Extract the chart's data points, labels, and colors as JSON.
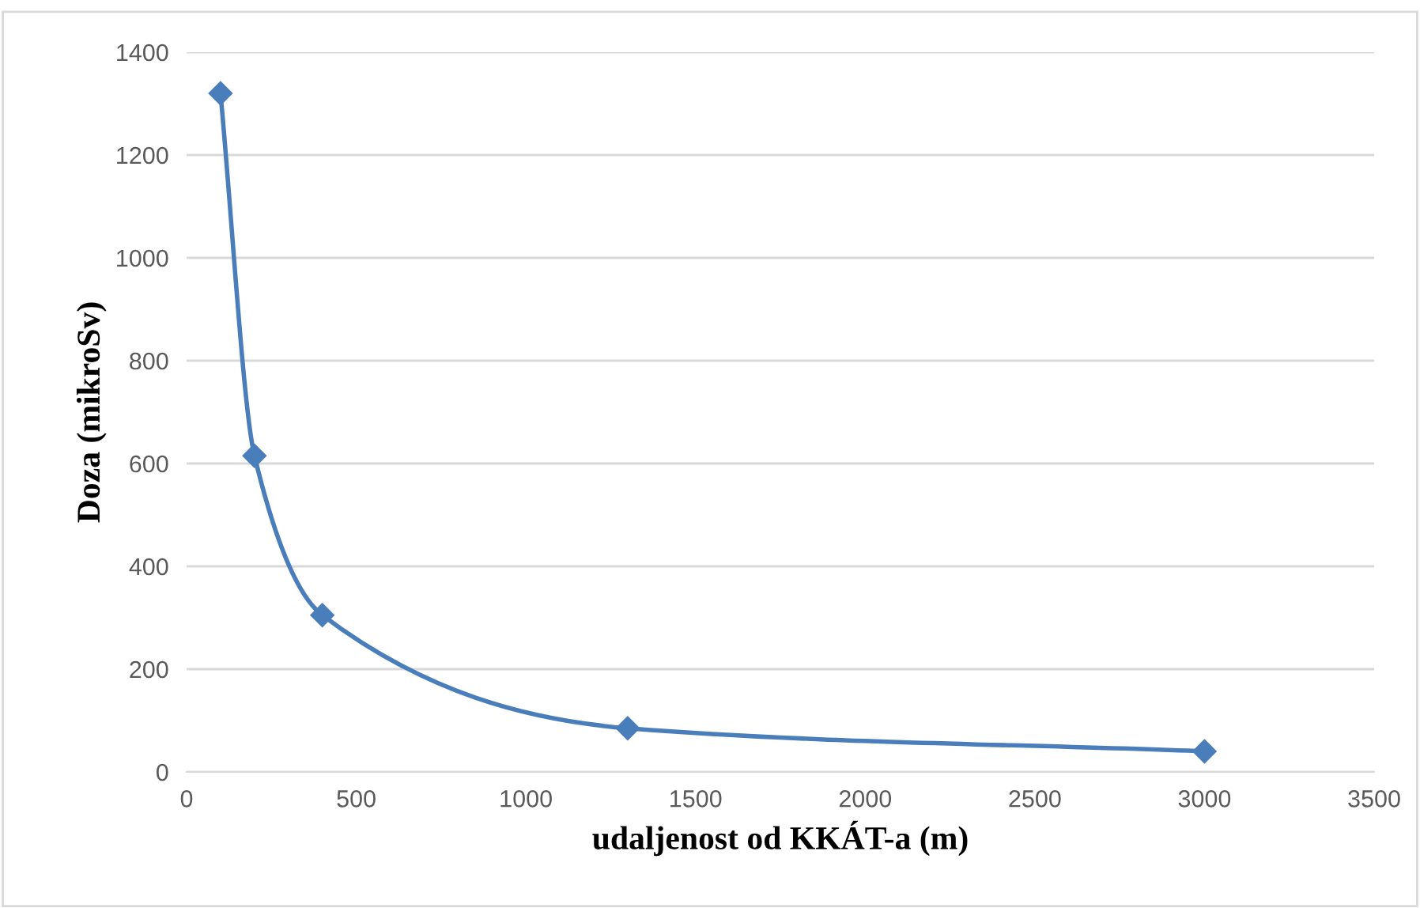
{
  "chart_data": {
    "type": "line",
    "xlabel": "udaljenost od KKÁT-a (m)",
    "ylabel": "Doza (mikroSv)",
    "x": [
      100,
      200,
      400,
      1300,
      3000
    ],
    "series": [
      {
        "color": "#4a7ebb",
        "values": [
          1320,
          615,
          305,
          85,
          40
        ]
      }
    ],
    "xlim": [
      0,
      3500
    ],
    "xticks": [
      0,
      500,
      1000,
      1500,
      2000,
      2500,
      3000,
      3500
    ],
    "ylim": [
      0,
      1400
    ],
    "yticks": [
      0,
      200,
      400,
      600,
      800,
      1000,
      1200,
      1400
    ],
    "grid": "y",
    "marker": "diamond",
    "line_style": "solid"
  }
}
